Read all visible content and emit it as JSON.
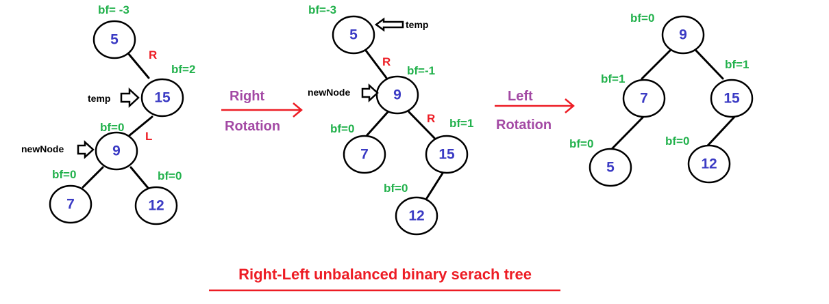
{
  "colors": {
    "node_value": "#3b3bc4",
    "balance_factor": "#22b14c",
    "direction": "#ed1c24",
    "rotation": "#a349a4",
    "caption": "#ed1c24"
  },
  "stage1": {
    "nodes": {
      "n5": "5",
      "n15": "15",
      "n9": "9",
      "n7": "7",
      "n12": "12"
    },
    "bf": {
      "n5": "bf= -3",
      "n15": "bf=2",
      "n9": "bf=0",
      "n7": "bf=0",
      "n12": "bf=0"
    },
    "dir": {
      "r": "R",
      "l": "L"
    },
    "pointers": {
      "temp": "temp",
      "newNode": "newNode"
    }
  },
  "rotation1": {
    "line1": "Right",
    "line2": "Rotation"
  },
  "stage2": {
    "nodes": {
      "n5": "5",
      "n9": "9",
      "n7": "7",
      "n15": "15",
      "n12": "12"
    },
    "bf": {
      "n5": "bf=-3",
      "n9": "bf=-1",
      "n7": "bf=0",
      "n15": "bf=1",
      "n12": "bf=0"
    },
    "dir": {
      "r1": "R",
      "r2": "R"
    },
    "pointers": {
      "temp": "temp",
      "newNode": "newNode"
    }
  },
  "rotation2": {
    "line1": "Left",
    "line2": "Rotation"
  },
  "stage3": {
    "nodes": {
      "n9": "9",
      "n7": "7",
      "n15": "15",
      "n5": "5",
      "n12": "12"
    },
    "bf": {
      "n9": "bf=0",
      "n7": "bf=1",
      "n15": "bf=1",
      "n5": "bf=0",
      "n12": "bf=0"
    }
  },
  "caption": "Right-Left unbalanced binary serach tree"
}
